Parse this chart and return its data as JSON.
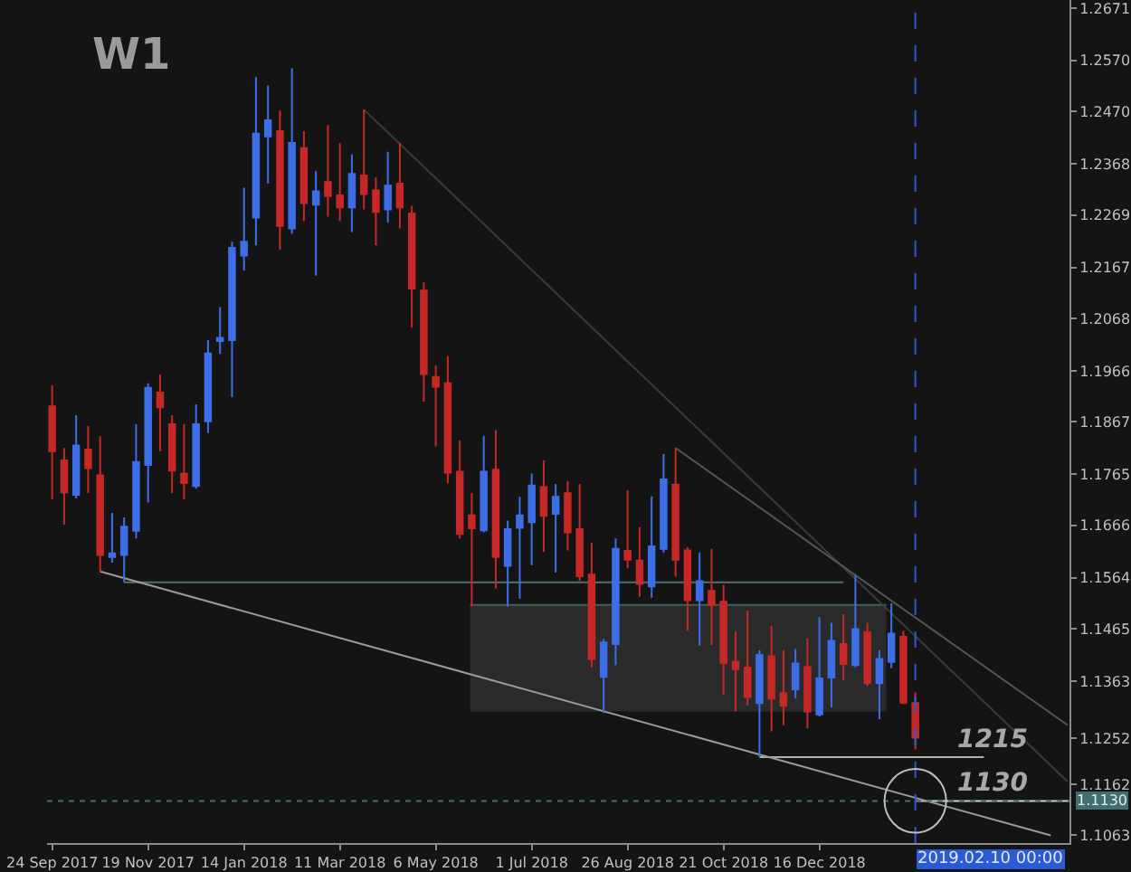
{
  "chart_data": {
    "type": "candlestick",
    "x": [
      "2017-09-24",
      "2017-10-01",
      "2017-10-08",
      "2017-10-15",
      "2017-10-22",
      "2017-10-29",
      "2017-11-05",
      "2017-11-12",
      "2017-11-19",
      "2017-11-26",
      "2017-12-03",
      "2017-12-10",
      "2017-12-17",
      "2017-12-24",
      "2017-12-31",
      "2018-01-07",
      "2018-01-14",
      "2018-01-21",
      "2018-01-28",
      "2018-02-04",
      "2018-02-11",
      "2018-02-18",
      "2018-02-25",
      "2018-03-04",
      "2018-03-11",
      "2018-03-18",
      "2018-03-25",
      "2018-04-01",
      "2018-04-08",
      "2018-04-15",
      "2018-04-22",
      "2018-04-29",
      "2018-05-06",
      "2018-05-13",
      "2018-05-20",
      "2018-05-27",
      "2018-06-03",
      "2018-06-10",
      "2018-06-17",
      "2018-06-24",
      "2018-07-01",
      "2018-07-08",
      "2018-07-15",
      "2018-07-22",
      "2018-07-29",
      "2018-08-05",
      "2018-08-12",
      "2018-08-19",
      "2018-08-26",
      "2018-09-02",
      "2018-09-09",
      "2018-09-16",
      "2018-09-23",
      "2018-09-30",
      "2018-10-07",
      "2018-10-14",
      "2018-10-21",
      "2018-10-28",
      "2018-11-04",
      "2018-11-11",
      "2018-11-18",
      "2018-11-25",
      "2018-12-02",
      "2018-12-09",
      "2018-12-16",
      "2018-12-23",
      "2018-12-30",
      "2019-01-06",
      "2019-01-13",
      "2019-01-20",
      "2019-01-27",
      "2019-02-03",
      "2019-02-10"
    ],
    "ohlc": [
      [
        1.1897,
        1.1938,
        1.1716,
        1.181
      ],
      [
        1.1792,
        1.1816,
        1.1667,
        1.173
      ],
      [
        1.1725,
        1.188,
        1.1718,
        1.1821
      ],
      [
        1.1813,
        1.1859,
        1.1728,
        1.1777
      ],
      [
        1.1763,
        1.1839,
        1.1576,
        1.1608
      ],
      [
        1.1604,
        1.169,
        1.1593,
        1.1611
      ],
      [
        1.1608,
        1.1681,
        1.1555,
        1.1663
      ],
      [
        1.1655,
        1.1862,
        1.164,
        1.1789
      ],
      [
        1.1783,
        1.1942,
        1.171,
        1.1933
      ],
      [
        1.1924,
        1.1959,
        1.181,
        1.1895
      ],
      [
        1.1862,
        1.188,
        1.1728,
        1.1772
      ],
      [
        1.1766,
        1.1862,
        1.1716,
        1.1748
      ],
      [
        1.1742,
        1.1901,
        1.1737,
        1.1862
      ],
      [
        1.1868,
        1.2026,
        1.1845,
        1.2
      ],
      [
        1.2024,
        1.209,
        1.1999,
        1.203
      ],
      [
        1.2026,
        1.2217,
        1.1915,
        1.2205
      ],
      [
        1.219,
        1.2322,
        1.2161,
        1.2217
      ],
      [
        1.2264,
        1.2537,
        1.221,
        1.2427
      ],
      [
        1.2422,
        1.2521,
        1.233,
        1.2453
      ],
      [
        1.2432,
        1.2472,
        1.2202,
        1.2248
      ],
      [
        1.2243,
        1.2554,
        1.2233,
        1.2409
      ],
      [
        1.2399,
        1.2432,
        1.2257,
        1.2292
      ],
      [
        1.2289,
        1.2354,
        1.2151,
        1.2315
      ],
      [
        1.2333,
        1.2444,
        1.2266,
        1.2306
      ],
      [
        1.2307,
        1.2409,
        1.2257,
        1.2284
      ],
      [
        1.2284,
        1.2387,
        1.2236,
        1.2349
      ],
      [
        1.2346,
        1.2474,
        1.228,
        1.231
      ],
      [
        1.2317,
        1.2342,
        1.221,
        1.2275
      ],
      [
        1.228,
        1.2392,
        1.2254,
        1.2326
      ],
      [
        1.233,
        1.2409,
        1.2243,
        1.2284
      ],
      [
        1.2272,
        1.2287,
        1.205,
        1.2126
      ],
      [
        1.2122,
        1.2138,
        1.1906,
        1.196
      ],
      [
        1.1954,
        1.1976,
        1.1819,
        1.1935
      ],
      [
        1.1942,
        1.1995,
        1.1747,
        1.1768
      ],
      [
        1.177,
        1.1831,
        1.164,
        1.1649
      ],
      [
        1.1685,
        1.1728,
        1.1508,
        1.166
      ],
      [
        1.1656,
        1.184,
        1.1652,
        1.177
      ],
      [
        1.1774,
        1.1851,
        1.1543,
        1.1604
      ],
      [
        1.1587,
        1.1675,
        1.1508,
        1.1658
      ],
      [
        1.1661,
        1.1721,
        1.1523,
        1.1685
      ],
      [
        1.1672,
        1.1767,
        1.1588,
        1.1743
      ],
      [
        1.174,
        1.1792,
        1.1614,
        1.1684
      ],
      [
        1.1688,
        1.1746,
        1.1574,
        1.1721
      ],
      [
        1.1728,
        1.1752,
        1.1617,
        1.1652
      ],
      [
        1.1658,
        1.1746,
        1.1558,
        1.1567
      ],
      [
        1.157,
        1.1632,
        1.1389,
        1.1406
      ],
      [
        1.1371,
        1.1445,
        1.1301,
        1.1438
      ],
      [
        1.1435,
        1.164,
        1.1394,
        1.162
      ],
      [
        1.1616,
        1.1734,
        1.1582,
        1.1599
      ],
      [
        1.1597,
        1.1662,
        1.1527,
        1.1552
      ],
      [
        1.1547,
        1.1722,
        1.1525,
        1.1625
      ],
      [
        1.162,
        1.1804,
        1.1613,
        1.1755
      ],
      [
        1.1745,
        1.1816,
        1.1566,
        1.1599
      ],
      [
        1.1617,
        1.1623,
        1.1461,
        1.152
      ],
      [
        1.152,
        1.1613,
        1.1432,
        1.1557
      ],
      [
        1.1538,
        1.162,
        1.1433,
        1.1511
      ],
      [
        1.1517,
        1.155,
        1.1336,
        1.1398
      ],
      [
        1.14,
        1.1459,
        1.1304,
        1.1386
      ],
      [
        1.1389,
        1.15,
        1.1316,
        1.1332
      ],
      [
        1.132,
        1.1423,
        1.1215,
        1.1414
      ],
      [
        1.1411,
        1.147,
        1.1265,
        1.1329
      ],
      [
        1.1339,
        1.1423,
        1.1277,
        1.1315
      ],
      [
        1.1347,
        1.1425,
        1.1329,
        1.1397
      ],
      [
        1.139,
        1.1446,
        1.1271,
        1.1304
      ],
      [
        1.1298,
        1.1487,
        1.1294,
        1.1368
      ],
      [
        1.137,
        1.1476,
        1.1312,
        1.1441
      ],
      [
        1.1435,
        1.1493,
        1.1365,
        1.1396
      ],
      [
        1.1394,
        1.1569,
        1.139,
        1.1464
      ],
      [
        1.1458,
        1.1476,
        1.1353,
        1.1359
      ],
      [
        1.1359,
        1.1423,
        1.1289,
        1.1406
      ],
      [
        1.14,
        1.1514,
        1.1388,
        1.1455
      ],
      [
        1.1449,
        1.1461,
        1.1318,
        1.1321
      ],
      [
        1.132,
        1.1341,
        1.123,
        1.1253
      ]
    ],
    "colors": [
      "#c62828",
      "#c62828",
      "#3d6ee8",
      "#c62828",
      "#c62828",
      "#3d6ee8",
      "#3d6ee8",
      "#3d6ee8",
      "#3d6ee8",
      "#c62828",
      "#c62828",
      "#c62828",
      "#3d6ee8",
      "#3d6ee8",
      "#3d6ee8",
      "#3d6ee8",
      "#3d6ee8",
      "#3d6ee8",
      "#3d6ee8",
      "#c62828",
      "#3d6ee8",
      "#c62828",
      "#3d6ee8",
      "#c62828",
      "#c62828",
      "#3d6ee8",
      "#c62828",
      "#c62828",
      "#3d6ee8",
      "#c62828",
      "#c62828",
      "#c62828",
      "#c62828",
      "#c62828",
      "#c62828",
      "#c62828",
      "#3d6ee8",
      "#c62828",
      "#3d6ee8",
      "#3d6ee8",
      "#3d6ee8",
      "#c62828",
      "#3d6ee8",
      "#c62828",
      "#c62828",
      "#c62828",
      "#3d6ee8",
      "#3d6ee8",
      "#c62828",
      "#c62828",
      "#3d6ee8",
      "#3d6ee8",
      "#c62828",
      "#c62828",
      "#3d6ee8",
      "#c62828",
      "#c62828",
      "#c62828",
      "#c62828",
      "#3d6ee8",
      "#c62828",
      "#c62828",
      "#3d6ee8",
      "#c62828",
      "#3d6ee8",
      "#3d6ee8",
      "#c62828",
      "#3d6ee8",
      "#c62828",
      "#3d6ee8",
      "#3d6ee8",
      "#c62828",
      "#c62828"
    ],
    "series": [
      {
        "type": "line",
        "x": [
          "2018-05-26",
          "2019-01-24"
        ],
        "values": [
          1.1511,
          1.1511
        ],
        "lower": [
          1.1304,
          1.1304
        ],
        "upper": [
          1.1511,
          1.1511
        ],
        "color": "#3f5f5f"
      },
      {
        "type": "line",
        "x": [
          "2017-11-05",
          "2018-12-30"
        ],
        "values": [
          1.1555,
          1.1555
        ],
        "color": "#4f6f6f"
      },
      {
        "type": "line",
        "x": [
          "2018-11-11",
          "2019-03-22"
        ],
        "values": [
          1.1215,
          1.1215
        ],
        "color": "#b0b0b0"
      },
      {
        "type": "line",
        "x": [
          "2019-02-10",
          "2019-05-11"
        ],
        "values": [
          1.113,
          1.113
        ],
        "color": "#d0d0d0"
      },
      {
        "type": "line",
        "x": [
          "2017-10-22",
          "2019-04-30"
        ],
        "values": [
          1.1576,
          1.1063
        ],
        "color": "#9a9a9a"
      },
      {
        "type": "line",
        "x": [
          "2018-03-25",
          "2019-05-10"
        ],
        "values": [
          1.2474,
          1.1167
        ],
        "color": "#3a3a3a"
      },
      {
        "type": "line",
        "x": [
          "2018-09-23",
          "2019-05-10"
        ],
        "values": [
          1.1816,
          1.1277
        ],
        "color": "#555555"
      }
    ],
    "xlim": [
      "2017-09-21",
      "2019-05-11"
    ],
    "xticks": [
      {
        "value": "2017-09-24",
        "label": "24 Sep 2017"
      },
      {
        "value": "2017-11-19",
        "label": "19 Nov 2017"
      },
      {
        "value": "2018-01-14",
        "label": "14 Jan 2018"
      },
      {
        "value": "2018-03-11",
        "label": "11 Mar 2018"
      },
      {
        "value": "2018-05-06",
        "label": "6 May 2018"
      },
      {
        "value": "2018-07-01",
        "label": "1 Jul 2018"
      },
      {
        "value": "2018-08-26",
        "label": "26 Aug 2018"
      },
      {
        "value": "2018-10-21",
        "label": "21 Oct 2018"
      },
      {
        "value": "2018-12-16",
        "label": "16 Dec 2018"
      }
    ],
    "ylim": [
      1.1048,
      1.2687
    ],
    "yticks": [
      1.2671,
      {
        "value": 1.257,
        "label": "1.2570"
      },
      {
        "value": 1.247,
        "label": "1.2470"
      },
      1.2368,
      1.2269,
      1.2167,
      1.2068,
      1.1966,
      1.1867,
      1.1765,
      1.1666,
      1.1564,
      1.1465,
      1.1363,
      1.1252,
      1.1162,
      1.1063
    ],
    "ref_lines": [
      {
        "axis": "x",
        "value": "2019-02-10",
        "label": "2019.02.10 00:00",
        "color": "#2a5bd7",
        "line_style": "dashed"
      },
      {
        "axis": "y",
        "value": 1.113,
        "label": "1.1130",
        "color": "#3f6f6f",
        "line_style": "dotted"
      }
    ],
    "annotations": [
      "W1",
      {
        "text": "1215",
        "x": "2019-03-22",
        "y": 1.1215
      },
      {
        "text": "1130",
        "x": "2019-03-22",
        "y": 1.113
      }
    ],
    "grid": false
  }
}
